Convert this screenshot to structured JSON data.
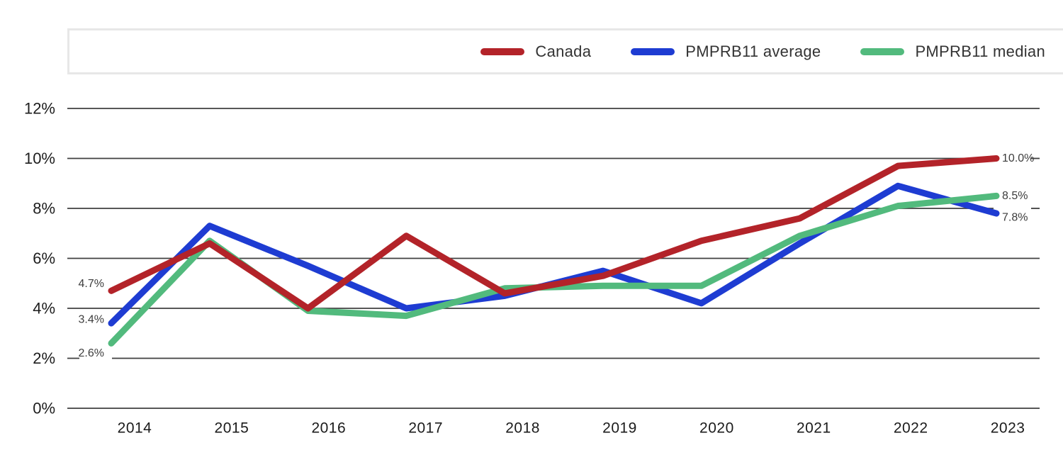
{
  "chart_data": {
    "type": "line",
    "title": "",
    "xlabel": "",
    "ylabel": "",
    "x": [
      "2014",
      "2015",
      "2016",
      "2017",
      "2018",
      "2019",
      "2020",
      "2021",
      "2022",
      "2023"
    ],
    "series": [
      {
        "name": "Canada",
        "color": "#b32329",
        "values": [
          4.7,
          6.6,
          4.0,
          6.9,
          4.6,
          5.3,
          6.7,
          7.6,
          9.7,
          10.0
        ],
        "first_point_label": "4.7%",
        "last_point_label": "10.0%"
      },
      {
        "name": "PMPRB11 average",
        "color": "#1e3cd2",
        "values": [
          3.4,
          7.3,
          5.7,
          4.0,
          4.5,
          5.5,
          4.2,
          6.6,
          8.9,
          7.8
        ],
        "first_point_label": "3.4%",
        "last_point_label": "7.8%"
      },
      {
        "name": "PMPRB11 median",
        "color": "#52ba7d",
        "values": [
          2.6,
          6.7,
          3.9,
          3.7,
          4.8,
          4.9,
          4.9,
          6.9,
          8.1,
          8.5
        ],
        "first_point_label": "2.6%",
        "last_point_label": "8.5%"
      }
    ],
    "y_ticks": [
      "12%",
      "10%",
      "8%",
      "6%",
      "4%",
      "2%",
      "0%"
    ],
    "y_tick_values": [
      12,
      10,
      8,
      6,
      4,
      2,
      0
    ],
    "ylim": [
      0,
      12
    ],
    "grid": true,
    "legend_position": "top"
  }
}
